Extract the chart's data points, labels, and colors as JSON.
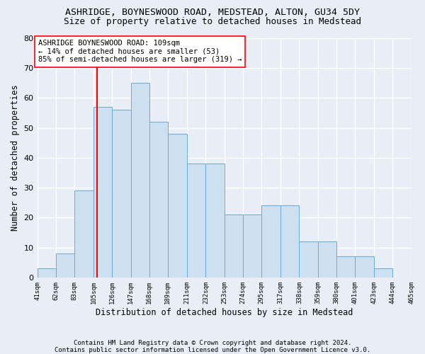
{
  "title1": "ASHRIDGE, BOYNESWOOD ROAD, MEDSTEAD, ALTON, GU34 5DY",
  "title2": "Size of property relative to detached houses in Medstead",
  "xlabel": "Distribution of detached houses by size in Medstead",
  "ylabel": "Number of detached properties",
  "footnote": "Contains HM Land Registry data © Crown copyright and database right 2024.\nContains public sector information licensed under the Open Government Licence v3.0.",
  "bin_edges": [
    41,
    62,
    83,
    105,
    126,
    147,
    168,
    189,
    211,
    232,
    253,
    274,
    295,
    317,
    338,
    359,
    380,
    401,
    423,
    444,
    465
  ],
  "bar_heights": [
    3,
    8,
    29,
    57,
    56,
    65,
    52,
    48,
    38,
    38,
    21,
    21,
    24,
    24,
    12,
    12,
    7,
    7,
    3,
    0,
    1
  ],
  "bar_color": "#cce0f0",
  "bar_edge_color": "#6aaad4",
  "vline_x": 109,
  "vline_color": "red",
  "ylim_max": 80,
  "yticks": [
    0,
    10,
    20,
    30,
    40,
    50,
    60,
    70,
    80
  ],
  "tick_labels": [
    "41sqm",
    "62sqm",
    "83sqm",
    "105sqm",
    "126sqm",
    "147sqm",
    "168sqm",
    "189sqm",
    "211sqm",
    "232sqm",
    "253sqm",
    "274sqm",
    "295sqm",
    "317sqm",
    "338sqm",
    "359sqm",
    "380sqm",
    "401sqm",
    "423sqm",
    "444sqm",
    "465sqm"
  ],
  "annotation_line1": "ASHRIDGE BOYNESWOOD ROAD: 109sqm",
  "annotation_line2": "← 14% of detached houses are smaller (53)",
  "annotation_line3": "85% of semi-detached houses are larger (319) →",
  "bg_color": "#e8eef6",
  "title1_fontsize": 9.5,
  "title2_fontsize": 9.0,
  "ylabel_fontsize": 8.5,
  "xlabel_fontsize": 8.5,
  "footnote_fontsize": 6.5,
  "annot_fontsize": 7.5,
  "tick_fontsize": 6.5
}
